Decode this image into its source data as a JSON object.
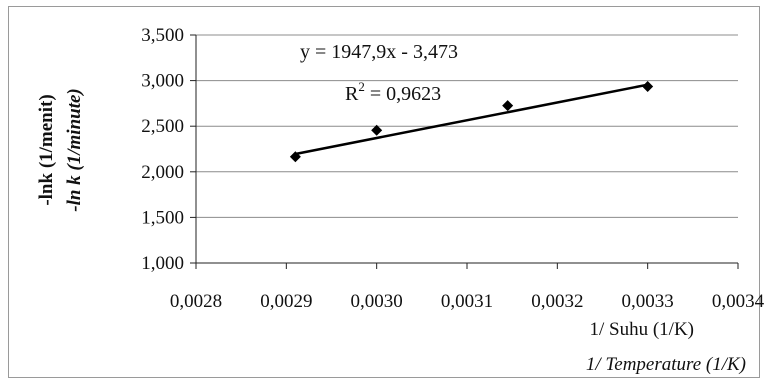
{
  "chart_data": {
    "type": "scatter",
    "x": [
      0.00291,
      0.003,
      0.003145,
      0.0033
    ],
    "y": [
      2.165,
      2.455,
      2.725,
      2.935
    ],
    "xlim": [
      0.0028,
      0.0034
    ],
    "ylim": [
      1.0,
      3.5
    ],
    "xticks": [
      0.0028,
      0.0029,
      0.003,
      0.0031,
      0.0032,
      0.0033,
      0.0034
    ],
    "yticks": [
      1.0,
      1.5,
      2.0,
      2.5,
      3.0,
      3.5
    ],
    "xtick_labels": [
      "0,0028",
      "0,0029",
      "0,0030",
      "0,0031",
      "0,0032",
      "0,0033",
      "0,0034"
    ],
    "ytick_labels": [
      "1,000",
      "1,500",
      "2,000",
      "2,500",
      "3,000",
      "3,500"
    ],
    "ylabel": "-lnk (1/menit)",
    "ylabel_en": "-ln k (1/minute)",
    "xlabel": "1/ Suhu  (1/K)",
    "xlabel_en": "1/ Temperature (1/K)",
    "trendline": {
      "type": "linear",
      "slope": 1947.9,
      "intercept": -3.473,
      "x_range": [
        0.00291,
        0.0033
      ],
      "equation_text": "y = 1947,9x - 3,473",
      "r2_label": "R",
      "r2_exponent": "2",
      "r2_value": " = 0,9623"
    },
    "grid": "horizontal",
    "marker": "diamond",
    "color": "#000000"
  }
}
